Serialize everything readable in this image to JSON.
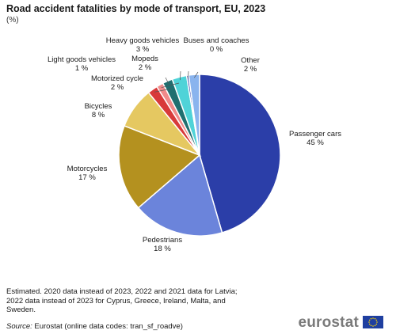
{
  "header": {
    "title": "Road accident fatalities by mode of transport, EU, 2023",
    "unit": "(%)"
  },
  "footer": {
    "note": "Estimated. 2020 data instead of 2023, 2022 and 2021 data for Latvia; 2022 data instead of 2023 for Cyprus, Greece, Ireland, Malta, and Sweden.",
    "source_label": "Source:",
    "source_text": "Eurostat (online data codes: tran_sf_roadve)",
    "brand": "eurostat"
  },
  "chart_data": {
    "type": "pie",
    "title": "Road accident fatalities by mode of transport, EU, 2023",
    "unit": "%",
    "slices": [
      {
        "name": "Passenger cars",
        "value": 45,
        "label": "45 %",
        "color": "#2b3ea8"
      },
      {
        "name": "Pedestrians",
        "value": 18,
        "label": "18 %",
        "color": "#6b84db"
      },
      {
        "name": "Motorcycles",
        "value": 17,
        "label": "17 %",
        "color": "#b4911f"
      },
      {
        "name": "Bicycles",
        "value": 8,
        "label": "8 %",
        "color": "#e5c861"
      },
      {
        "name": "Motorized cycle",
        "value": 2,
        "label": "2 %",
        "color": "#d83a3a"
      },
      {
        "name": "Light goods  vehicles",
        "value": 1,
        "label": "1 %",
        "color": "#f08a8a"
      },
      {
        "name": "Mopeds",
        "value": 2,
        "label": "2 %",
        "color": "#1f6f70"
      },
      {
        "name": "Heavy goods vehicles",
        "value": 3,
        "label": "3 %",
        "color": "#4fd3d8"
      },
      {
        "name": "Buses and coaches",
        "value": 0,
        "label": "0 %",
        "color": "#2b3ea8"
      },
      {
        "name": "Other",
        "value": 2,
        "label": "2 %",
        "color": "#8ab4ee"
      }
    ]
  }
}
